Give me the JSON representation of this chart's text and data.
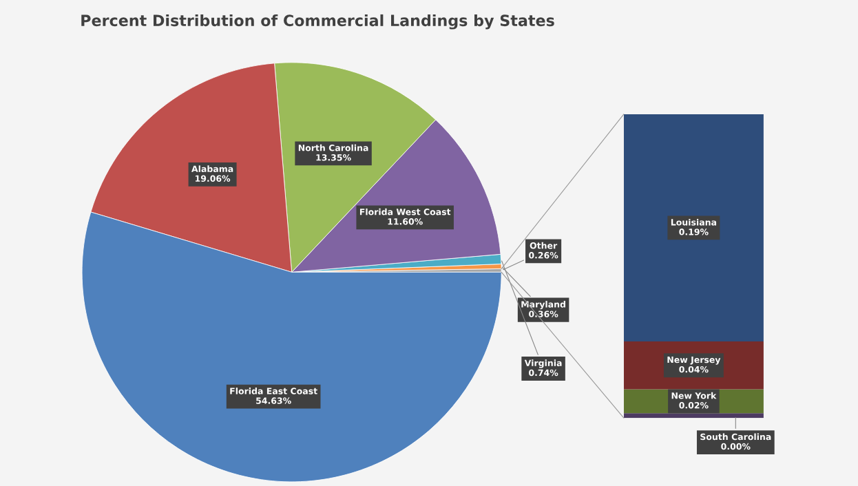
{
  "chart_data": [
    {
      "type": "pie",
      "title": "Percent Distribution of Commercial Landings by States",
      "categories": [
        "Other",
        "Maryland",
        "Virginia",
        "Florida West Coast",
        "North Carolina",
        "Alabama",
        "Florida East Coast"
      ],
      "values": [
        0.26,
        0.36,
        0.74,
        11.6,
        13.35,
        19.06,
        54.63
      ],
      "value_labels": [
        "0.26%",
        "0.36%",
        "0.74%",
        "11.60%",
        "13.35%",
        "19.06%",
        "54.63%"
      ],
      "colors": [
        "#a5a5a5",
        "#f79646",
        "#4bacc6",
        "#8064a2",
        "#9bbb59",
        "#c0504d",
        "#4f81bd"
      ]
    },
    {
      "type": "bar",
      "stacked": true,
      "categories": [
        null
      ],
      "tick_labels": false,
      "series": [
        {
          "name": "South Carolina",
          "color": "#4d3b62",
          "values": [
            0.004
          ],
          "value_labels": [
            "0.00%"
          ]
        },
        {
          "name": "New York",
          "color": "#5f7530",
          "values": [
            0.02
          ],
          "value_labels": [
            "0.02%"
          ]
        },
        {
          "name": "New Jersey",
          "color": "#772c2a",
          "values": [
            0.04
          ],
          "value_labels": [
            "0.04%"
          ]
        },
        {
          "name": "Louisiana",
          "color": "#2e4d7b",
          "values": [
            0.19
          ],
          "value_labels": [
            "0.19%"
          ]
        }
      ]
    }
  ]
}
